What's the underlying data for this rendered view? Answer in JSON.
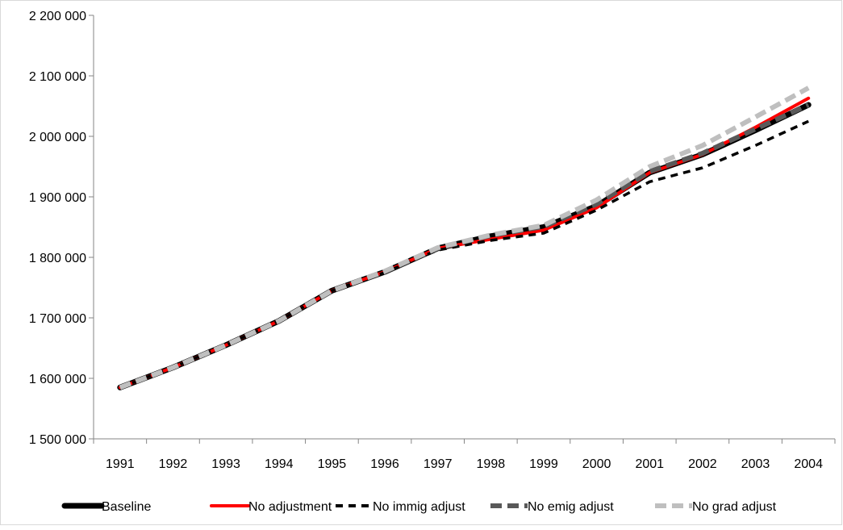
{
  "chart_data": {
    "type": "line",
    "x": [
      "1991",
      "1992",
      "1993",
      "1994",
      "1995",
      "1996",
      "1997",
      "1998",
      "1999",
      "2000",
      "2001",
      "2002",
      "2003",
      "2004"
    ],
    "ylim": [
      1500000,
      2200000
    ],
    "yticks": [
      1500000,
      1600000,
      1700000,
      1800000,
      1900000,
      2000000,
      2100000,
      2200000
    ],
    "ytick_labels": [
      "1 500 000",
      "1 600 000",
      "1 700 000",
      "1 800 000",
      "1 900 000",
      "2 000 000",
      "2 100 000",
      "2 200 000"
    ],
    "grid": false,
    "legend_position": "bottom",
    "series": [
      {
        "name": "Baseline",
        "color": "#000000",
        "style": "solid-thick",
        "values": [
          1585000,
          1618000,
          1655000,
          1695000,
          1745000,
          1776000,
          1815000,
          1835000,
          1850000,
          1885000,
          1940000,
          1970000,
          2010000,
          2052000
        ]
      },
      {
        "name": "No adjustment",
        "color": "#ff0000",
        "style": "solid",
        "values": [
          1585000,
          1618000,
          1655000,
          1695000,
          1745000,
          1776000,
          1815000,
          1830000,
          1845000,
          1882000,
          1940000,
          1970000,
          2015000,
          2063000
        ]
      },
      {
        "name": "No immig adjust",
        "color": "#000000",
        "style": "dashed-fine",
        "values": [
          1585000,
          1618000,
          1655000,
          1695000,
          1745000,
          1775000,
          1812000,
          1828000,
          1840000,
          1878000,
          1925000,
          1948000,
          1985000,
          2025000
        ]
      },
      {
        "name": "No emig adjust",
        "color": "#595959",
        "style": "dashed-bold",
        "values": [
          1585000,
          1618000,
          1655000,
          1695000,
          1745000,
          1776000,
          1815000,
          1836000,
          1851000,
          1888000,
          1942000,
          1972000,
          2012000,
          2052000
        ]
      },
      {
        "name": "No grad adjust",
        "color": "#bfbfbf",
        "style": "dashed-bold",
        "values": [
          1585000,
          1618000,
          1655000,
          1695000,
          1745000,
          1777000,
          1816000,
          1837000,
          1853000,
          1895000,
          1950000,
          1985000,
          2032000,
          2080000
        ]
      }
    ]
  }
}
